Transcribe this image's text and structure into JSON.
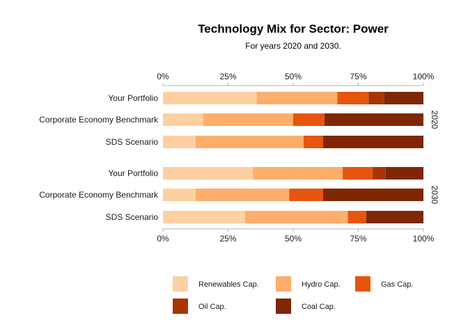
{
  "chart_data": {
    "type": "bar",
    "orientation": "horizontal",
    "stacked": true,
    "normalized": true,
    "title": "Technology Mix for Sector: Power",
    "subtitle": "For years 2020 and 2030.",
    "xlabel": "",
    "ylabel": "",
    "xlim": [
      0,
      1
    ],
    "ticks": [
      "0%",
      "25%",
      "50%",
      "75%",
      "100%"
    ],
    "tick_values": [
      0,
      0.25,
      0.5,
      0.75,
      1.0
    ],
    "legend_position": "bottom",
    "series": [
      {
        "name": "Renewables Cap.",
        "color": "#fdd0a2"
      },
      {
        "name": "Hydro Cap.",
        "color": "#fdae6b"
      },
      {
        "name": "Gas Cap.",
        "color": "#e6550d"
      },
      {
        "name": "Oil Cap.",
        "color": "#a63603"
      },
      {
        "name": "Coal Cap.",
        "color": "#7f2704"
      }
    ],
    "facets": [
      {
        "label": "2020",
        "rows": [
          {
            "category": "Your Portfolio",
            "values": [
              0.36,
              0.31,
              0.12,
              0.06,
              0.15
            ]
          },
          {
            "category": "Corporate Economy Benchmark",
            "values": [
              0.155,
              0.345,
              0.12,
              0.0,
              0.38
            ]
          },
          {
            "category": "SDS Scenario",
            "values": [
              0.125,
              0.415,
              0.075,
              0.0,
              0.385
            ]
          }
        ]
      },
      {
        "label": "2030",
        "rows": [
          {
            "category": "Your Portfolio",
            "values": [
              0.345,
              0.345,
              0.115,
              0.05,
              0.145
            ]
          },
          {
            "category": "Corporate Economy Benchmark",
            "values": [
              0.125,
              0.36,
              0.13,
              0.0,
              0.385
            ]
          },
          {
            "category": "SDS Scenario",
            "values": [
              0.315,
              0.395,
              0.07,
              0.0,
              0.22
            ]
          }
        ]
      }
    ]
  }
}
